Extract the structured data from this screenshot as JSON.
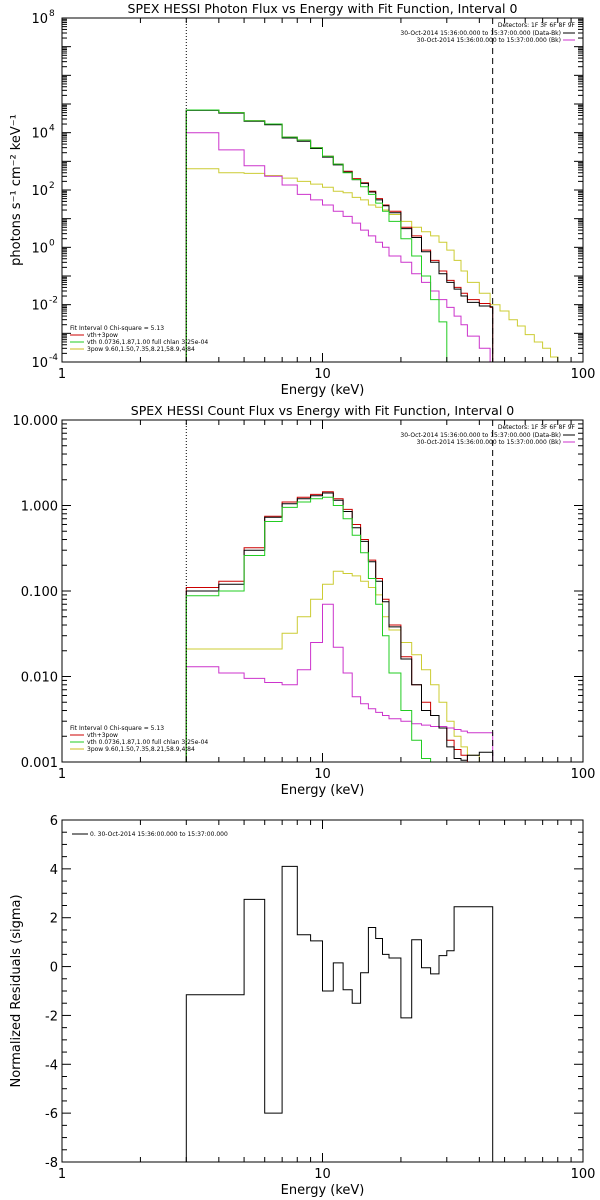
{
  "chart_data": [
    {
      "type": "line",
      "title": "SPEX HESSI Photon Flux vs Energy with Fit Function, Interval 0",
      "xlabel": "Energy (keV)",
      "ylabel": "photons s⁻¹ cm⁻² keV⁻¹",
      "xscale": "log",
      "yscale": "log",
      "xlim": [
        1,
        100
      ],
      "ylim": [
        0.0001,
        100000000
      ],
      "xticks": [
        {
          "v": 1,
          "t": "1"
        },
        {
          "v": 10,
          "t": "10"
        },
        {
          "v": 100,
          "t": "100"
        }
      ],
      "yticks": [
        {
          "v": 0.0001,
          "t": "10",
          "sup": "-4"
        },
        {
          "v": 0.01,
          "t": "10",
          "sup": "-2"
        },
        {
          "v": 1,
          "t": "10",
          "sup": "0"
        },
        {
          "v": 100,
          "t": "10",
          "sup": "2"
        },
        {
          "v": 10000,
          "t": "10",
          "sup": "4"
        },
        {
          "v": 100000000,
          "t": "10",
          "sup": "8"
        }
      ],
      "vlines": [
        {
          "x": 3,
          "style": "dotted"
        },
        {
          "x": 45,
          "style": "dashed"
        }
      ],
      "legend_topright": {
        "header": "Detectors: 1F 3F 6F 8F 9F",
        "entries": [
          {
            "text": "30-Oct-2014 15:36:00.000 to 15:37:00.000 (Data-Bk)",
            "color": "#000000"
          },
          {
            "text": "30-Oct-2014 15:36:00.000 to 15:37:00.000 (Bk)",
            "color": "#cc33cc"
          }
        ]
      },
      "legend_bottomleft": {
        "header": "Fit Interval 0   Chi-square = 5.13",
        "entries": [
          {
            "text": "vth+3pow",
            "color": "#cc0000"
          },
          {
            "text": "vth 0.0736,1.87,1.00  full chlan 3.25e-04",
            "color": "#22cc22"
          },
          {
            "text": "3pow 9.60,1.50,7.35,8.21,58.9,4.84",
            "color": "#ccbb22"
          }
        ]
      },
      "series": [
        {
          "color": "#cccc33",
          "type": "step",
          "edges": [
            3,
            4,
            5,
            6,
            7,
            8,
            9,
            10,
            11,
            12,
            13,
            14,
            15,
            16,
            17,
            18,
            20,
            22,
            24,
            26,
            28,
            30,
            32,
            34,
            36,
            40,
            44,
            48,
            52,
            56,
            60,
            65,
            70,
            75,
            80
          ],
          "values": [
            550,
            400,
            380,
            320,
            260,
            200,
            160,
            125,
            90,
            80,
            55,
            45,
            30,
            25,
            20,
            14,
            8,
            5,
            3.5,
            2.5,
            1.5,
            0.8,
            0.35,
            0.15,
            0.06,
            0.025,
            0.01,
            0.006,
            0.003,
            0.0018,
            0.0009,
            0.0005,
            0.0003,
            0.00015
          ]
        },
        {
          "color": "#cc33cc",
          "type": "step",
          "edges": [
            3,
            4,
            5,
            6,
            7,
            8,
            9,
            10,
            11,
            12,
            13,
            14,
            15,
            16,
            17,
            18,
            20,
            22,
            24,
            26,
            28,
            30,
            32,
            34,
            36,
            40,
            44,
            45
          ],
          "values": [
            10000,
            2500,
            700,
            300,
            150,
            70,
            45,
            30,
            18,
            12,
            7,
            4,
            2.5,
            1.5,
            1,
            0.5,
            0.3,
            0.12,
            0.06,
            0.03,
            0.015,
            0.008,
            0.004,
            0.002,
            0.0008,
            0.0003,
            0.0001
          ]
        },
        {
          "color": "#cc0000",
          "type": "step",
          "edges": [
            3,
            4,
            5,
            6,
            7,
            8,
            9,
            10,
            11,
            12,
            13,
            14,
            15,
            16,
            17,
            18,
            20,
            22,
            24,
            26,
            28,
            30,
            32,
            34,
            36,
            40,
            44,
            45
          ],
          "values": [
            62000,
            50000,
            26000,
            20000,
            7000,
            5500,
            3000,
            1500,
            800,
            450,
            250,
            180,
            90,
            50,
            30,
            18,
            5,
            2.5,
            0.8,
            0.35,
            0.15,
            0.07,
            0.04,
            0.025,
            0.015,
            0.011,
            0.008
          ]
        },
        {
          "color": "#000000",
          "type": "step",
          "edges": [
            3,
            4,
            5,
            6,
            7,
            8,
            9,
            10,
            11,
            12,
            13,
            14,
            15,
            16,
            17,
            18,
            20,
            22,
            24,
            26,
            28,
            30,
            32,
            34,
            36,
            40,
            44,
            45
          ],
          "values": [
            60000,
            48000,
            25000,
            19000,
            6500,
            5000,
            2800,
            1400,
            750,
            420,
            230,
            170,
            85,
            45,
            28,
            16,
            4.5,
            2.2,
            0.7,
            0.3,
            0.12,
            0.06,
            0.035,
            0.02,
            0.012,
            0.009,
            0.0085
          ]
        },
        {
          "color": "#22cc22",
          "type": "step",
          "edges": [
            3,
            4,
            5,
            6,
            7,
            8,
            9,
            10,
            11,
            12,
            13,
            14,
            15,
            16,
            17,
            18,
            20,
            22,
            24,
            26,
            28,
            30
          ],
          "values": [
            62000,
            50000,
            26000,
            20000,
            7000,
            5500,
            3000,
            1500,
            800,
            400,
            230,
            130,
            70,
            35,
            18,
            8,
            2,
            0.5,
            0.1,
            0.015,
            0.0025
          ]
        }
      ]
    },
    {
      "type": "line",
      "title": "SPEX HESSI Count Flux vs Energy with Fit Function, Interval 0",
      "xlabel": "Energy (keV)",
      "ylabel": "",
      "xscale": "log",
      "yscale": "log",
      "xlim": [
        1,
        100
      ],
      "ylim": [
        0.001,
        10
      ],
      "xticks": [
        {
          "v": 1,
          "t": "1"
        },
        {
          "v": 10,
          "t": "10"
        },
        {
          "v": 100,
          "t": "100"
        }
      ],
      "yticks": [
        {
          "v": 0.001,
          "t": "0.001"
        },
        {
          "v": 0.01,
          "t": "0.010"
        },
        {
          "v": 0.1,
          "t": "0.100"
        },
        {
          "v": 1,
          "t": "1.000"
        },
        {
          "v": 10,
          "t": "10.000"
        }
      ],
      "vlines": [
        {
          "x": 3,
          "style": "dotted"
        },
        {
          "x": 45,
          "style": "dashed"
        }
      ],
      "legend_topright": {
        "header": "Detectors: 1F 3F 6F 8F 9F",
        "entries": [
          {
            "text": "30-Oct-2014 15:36:00.000 to 15:37:00.000 (Data-Bk)",
            "color": "#000000"
          },
          {
            "text": "30-Oct-2014 15:36:00.000 to 15:37:00.000 (Bk)",
            "color": "#cc33cc"
          }
        ]
      },
      "legend_bottomleft": {
        "header": "Fit Interval 0   Chi-square = 5.13",
        "entries": [
          {
            "text": "vth+3pow",
            "color": "#cc0000"
          },
          {
            "text": "vth 0.0736,1.87,1.00  full chlan 3.25e-04",
            "color": "#22cc22"
          },
          {
            "text": "3pow 9.60,1.50,7.35,8.21,58.9,4.84",
            "color": "#ccbb22"
          }
        ]
      },
      "series": [
        {
          "color": "#cccc33",
          "type": "step",
          "edges": [
            3,
            4,
            5,
            6,
            7,
            8,
            9,
            10,
            11,
            12,
            13,
            14,
            15,
            16,
            17,
            18,
            20,
            22,
            24,
            26,
            28,
            30,
            32,
            34,
            36,
            40
          ],
          "values": [
            0.021,
            0.021,
            0.021,
            0.021,
            0.032,
            0.05,
            0.08,
            0.12,
            0.17,
            0.16,
            0.15,
            0.13,
            0.11,
            0.09,
            0.05,
            0.035,
            0.025,
            0.018,
            0.012,
            0.008,
            0.005,
            0.003,
            0.002,
            0.0015,
            0.0012
          ]
        },
        {
          "color": "#cc33cc",
          "type": "step",
          "edges": [
            3,
            4,
            5,
            6,
            7,
            8,
            9,
            10,
            11,
            12,
            13,
            14,
            15,
            16,
            17,
            18,
            20,
            22,
            24,
            26,
            28,
            30,
            32,
            34,
            36,
            40,
            44,
            45
          ],
          "values": [
            0.013,
            0.011,
            0.0095,
            0.0085,
            0.008,
            0.012,
            0.025,
            0.07,
            0.022,
            0.011,
            0.0058,
            0.0048,
            0.0042,
            0.0038,
            0.0035,
            0.0032,
            0.003,
            0.0028,
            0.0027,
            0.0026,
            0.0026,
            0.0025,
            0.0024,
            0.0023,
            0.0022,
            0.0022,
            0.0022
          ]
        },
        {
          "color": "#cc0000",
          "type": "step",
          "edges": [
            3,
            4,
            5,
            6,
            7,
            8,
            9,
            10,
            11,
            12,
            13,
            14,
            15,
            16,
            17,
            18,
            20,
            22,
            24,
            26,
            28,
            30,
            32,
            34,
            36,
            40
          ],
          "values": [
            0.11,
            0.13,
            0.32,
            0.75,
            1.1,
            1.25,
            1.35,
            1.45,
            1.2,
            0.9,
            0.6,
            0.4,
            0.23,
            0.14,
            0.08,
            0.04,
            0.017,
            0.008,
            0.005,
            0.0035,
            0.0025,
            0.0018,
            0.0014,
            0.0012,
            0.001
          ]
        },
        {
          "color": "#000000",
          "type": "step",
          "edges": [
            3,
            4,
            5,
            6,
            7,
            8,
            9,
            10,
            11,
            12,
            13,
            14,
            15,
            16,
            17,
            18,
            20,
            22,
            24,
            26,
            28,
            30,
            32,
            34,
            36,
            40,
            44,
            45
          ],
          "values": [
            0.1,
            0.12,
            0.3,
            0.73,
            1.05,
            1.2,
            1.3,
            1.4,
            1.15,
            0.85,
            0.55,
            0.38,
            0.22,
            0.13,
            0.075,
            0.038,
            0.016,
            0.008,
            0.004,
            0.0035,
            0.0025,
            0.0015,
            0.0011,
            0.00105,
            0.0012,
            0.0013,
            0.0013
          ]
        },
        {
          "color": "#22cc22",
          "type": "step",
          "edges": [
            3,
            4,
            5,
            6,
            7,
            8,
            9,
            10,
            11,
            12,
            13,
            14,
            15,
            16,
            17,
            18,
            20,
            22,
            24,
            26
          ],
          "values": [
            0.088,
            0.1,
            0.26,
            0.65,
            0.95,
            1.1,
            1.2,
            1.25,
            1.0,
            0.7,
            0.45,
            0.28,
            0.14,
            0.07,
            0.03,
            0.011,
            0.004,
            0.0018,
            0.0011
          ]
        }
      ]
    },
    {
      "type": "line",
      "title": "",
      "xlabel": "Energy (keV)",
      "ylabel": "Normalized Residuals (sigma)",
      "xscale": "log",
      "yscale": "linear",
      "xlim": [
        1,
        100
      ],
      "ylim": [
        -8,
        6
      ],
      "xticks": [
        {
          "v": 1,
          "t": "1"
        },
        {
          "v": 10,
          "t": "10"
        },
        {
          "v": 100,
          "t": "100"
        }
      ],
      "yticks": [
        {
          "v": -8,
          "t": "-8"
        },
        {
          "v": -6,
          "t": "-6"
        },
        {
          "v": -4,
          "t": "-4"
        },
        {
          "v": -2,
          "t": "-2"
        },
        {
          "v": 0,
          "t": "0"
        },
        {
          "v": 2,
          "t": "2"
        },
        {
          "v": 4,
          "t": "4"
        },
        {
          "v": 6,
          "t": "6"
        }
      ],
      "vlines": [],
      "legend_topleft": {
        "entries": [
          {
            "text": "0. 30-Oct-2014 15:36:00.000 to 15:37:00.000",
            "color": "#000000"
          }
        ]
      },
      "series": [
        {
          "color": "#000000",
          "type": "step",
          "edges": [
            3,
            4,
            5,
            6,
            7,
            8,
            9,
            10,
            11,
            12,
            13,
            14,
            15,
            16,
            17,
            18,
            20,
            22,
            24,
            26,
            28,
            30,
            32,
            34,
            36,
            40,
            44,
            45
          ],
          "values": [
            -1.15,
            -1.15,
            2.75,
            -6.0,
            4.1,
            1.3,
            1.05,
            -1.0,
            0.15,
            -0.95,
            -1.5,
            -0.25,
            1.6,
            1.15,
            0.5,
            0.35,
            -2.1,
            1.1,
            -0.05,
            -0.3,
            0.45,
            0.65,
            2.45,
            2.45,
            2.45,
            2.45,
            2.45
          ]
        }
      ]
    }
  ]
}
